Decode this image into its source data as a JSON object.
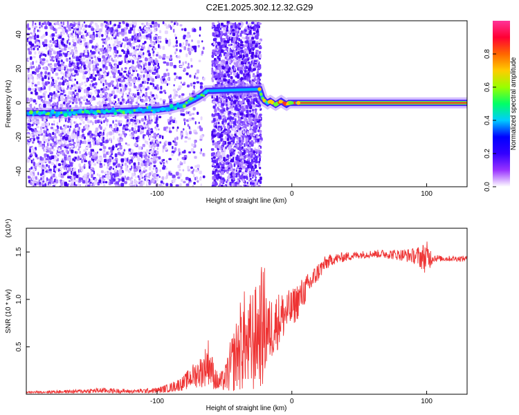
{
  "title": "C2E1.2025.302.12.32.G29",
  "chart_data": [
    {
      "type": "heatmap",
      "xlabel": "Height of straight line (km)",
      "ylabel": "Frequency (Hz)",
      "xlim": [
        -197,
        130
      ],
      "ylim": [
        -49,
        48
      ],
      "xticks": [
        -100,
        0,
        100
      ],
      "xtick_labels": [
        "-100",
        "0",
        "100"
      ],
      "yticks": [
        -40,
        -20,
        0,
        20,
        40
      ],
      "ytick_labels": [
        "-40",
        "-20",
        "0",
        "20",
        "40"
      ],
      "colorbar": {
        "label": "Normalized spectral amplitude",
        "range": [
          0,
          1
        ],
        "ticks": [
          0.0,
          0.2,
          0.4,
          0.6,
          0.8
        ],
        "tick_labels": [
          "0.0",
          "0.2",
          "0.4",
          "0.6",
          "0.8"
        ],
        "colormap": [
          "#ffffff",
          "#9933ff",
          "#3300ff",
          "#0000ff",
          "#00ccff",
          "#00ff66",
          "#99ff00",
          "#ffcc00",
          "#ff6600",
          "#ff0033",
          "#ff3399"
        ]
      },
      "ridge": {
        "x": [
          -197,
          -180,
          -160,
          -140,
          -120,
          -100,
          -90,
          -80,
          -75,
          -70,
          -66,
          -63,
          -24,
          -22,
          -20,
          -18,
          -16,
          -14,
          -12,
          -10,
          -8,
          -6,
          -4,
          -2,
          0,
          5,
          10,
          20,
          40,
          60,
          80,
          100,
          130
        ],
        "y": [
          -6,
          -6,
          -5.5,
          -5,
          -4.5,
          -4,
          -3,
          -1,
          1,
          3,
          5,
          7,
          8,
          3,
          1,
          0,
          1,
          0,
          -1,
          0,
          1,
          0,
          -1,
          0,
          0,
          0,
          0,
          0,
          0,
          0,
          0,
          0,
          0
        ]
      },
      "noise_regions": [
        {
          "x": [
            -197,
            -100
          ],
          "density": "medium"
        },
        {
          "x": [
            -100,
            -66
          ],
          "density": "sparse"
        },
        {
          "x": [
            -60,
            -24
          ],
          "density": "dense"
        }
      ]
    },
    {
      "type": "line",
      "xlabel": "Height of straight line (km)",
      "ylabel": "SNR (10 * v/v)",
      "y_multiplier": "(x10⁴)",
      "xlim": [
        -197,
        130
      ],
      "ylim": [
        0,
        1.75
      ],
      "xticks": [
        -100,
        0,
        100
      ],
      "xtick_labels": [
        "-100",
        "0",
        "100"
      ],
      "yticks": [
        0.5,
        1.0,
        1.5
      ],
      "ytick_labels": [
        "0.5",
        "1.0",
        "1.5"
      ],
      "color": "#ee3333",
      "envelope": {
        "x": [
          -197,
          -180,
          -160,
          -140,
          -120,
          -100,
          -90,
          -80,
          -75,
          -70,
          -66,
          -62,
          -58,
          -55,
          -50,
          -45,
          -40,
          -37,
          -35,
          -33,
          -30,
          -27,
          -25,
          -22,
          -20,
          -17,
          -15,
          -10,
          -5,
          0,
          5,
          10,
          15,
          20,
          25,
          30,
          40,
          50,
          60,
          70,
          80,
          90,
          95,
          100,
          105,
          110,
          120,
          130
        ],
        "mean": [
          0.02,
          0.025,
          0.03,
          0.04,
          0.03,
          0.04,
          0.07,
          0.12,
          0.18,
          0.22,
          0.25,
          0.35,
          0.2,
          0.12,
          0.15,
          0.3,
          0.45,
          0.55,
          0.6,
          0.45,
          0.55,
          0.6,
          0.65,
          0.7,
          0.75,
          0.65,
          0.7,
          0.78,
          0.85,
          0.9,
          1.0,
          1.1,
          1.2,
          1.3,
          1.38,
          1.42,
          1.45,
          1.47,
          1.48,
          1.48,
          1.47,
          1.46,
          1.45,
          1.44,
          1.44,
          1.43,
          1.43,
          1.43
        ],
        "amp": [
          0.01,
          0.015,
          0.02,
          0.03,
          0.02,
          0.03,
          0.05,
          0.08,
          0.12,
          0.15,
          0.18,
          0.25,
          0.15,
          0.1,
          0.12,
          0.3,
          0.4,
          0.55,
          0.5,
          0.4,
          0.6,
          0.55,
          0.5,
          0.7,
          0.6,
          0.35,
          0.35,
          0.3,
          0.25,
          0.2,
          0.2,
          0.15,
          0.12,
          0.1,
          0.08,
          0.06,
          0.05,
          0.04,
          0.04,
          0.05,
          0.06,
          0.08,
          0.12,
          0.18,
          0.05,
          0.03,
          0.03,
          0.03
        ]
      }
    }
  ]
}
